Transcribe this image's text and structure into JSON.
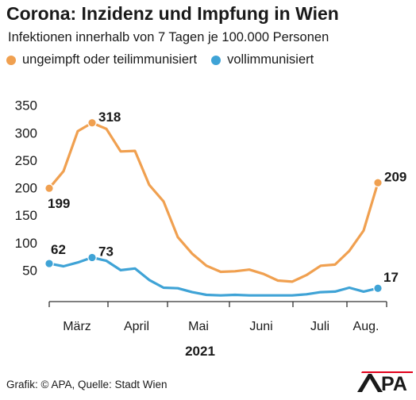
{
  "header": {
    "title": "Corona: Inzidenz und Impfung in Wien",
    "subtitle": "Infektionen innerhalb von 7 Tagen je 100.000 Personen"
  },
  "footer": {
    "credit": "Grafik: © APA, Quelle: Stadt Wien",
    "logo_text": "APA"
  },
  "colors": {
    "unvaccinated": "#f0a050",
    "vaccinated": "#3fa3d6"
  },
  "chart_data": {
    "type": "line",
    "title": "Corona: Inzidenz und Impfung in Wien",
    "subtitle": "Infektionen innerhalb von 7 Tagen je 100.000 Personen",
    "xlabel": "2021",
    "ylabel": "",
    "ylim": [
      0,
      350
    ],
    "yticks": [
      50,
      100,
      150,
      200,
      250,
      300,
      350
    ],
    "grid": false,
    "legend_position": "top-left",
    "x_ticks": [
      "März",
      "April",
      "Mai",
      "Juni",
      "Juli",
      "Aug."
    ],
    "x_unit": "weekly data points, Feb – Aug 2021",
    "series": [
      {
        "name": "ungeimpft oder teilimmunisiert",
        "color": "#f0a050",
        "values": [
          199,
          230,
          303,
          318,
          307,
          266,
          267,
          205,
          175,
          110,
          80,
          58,
          47,
          48,
          51,
          43,
          31,
          29,
          41,
          58,
          60,
          85,
          122,
          209
        ]
      },
      {
        "name": "vollimmunisiert",
        "color": "#3fa3d6",
        "values": [
          62,
          57,
          64,
          73,
          67,
          50,
          53,
          32,
          18,
          17,
          10,
          5,
          4,
          5,
          4,
          4,
          4,
          4,
          6,
          10,
          11,
          18,
          11,
          17
        ]
      }
    ],
    "annotations": [
      {
        "series": 0,
        "index": 0,
        "label": "199",
        "position": "below"
      },
      {
        "series": 0,
        "index": 3,
        "label": "318",
        "position": "right"
      },
      {
        "series": 0,
        "index": 23,
        "label": "209",
        "position": "right"
      },
      {
        "series": 1,
        "index": 0,
        "label": "62",
        "position": "above"
      },
      {
        "series": 1,
        "index": 3,
        "label": "73",
        "position": "right"
      },
      {
        "series": 1,
        "index": 23,
        "label": "17",
        "position": "above-right"
      }
    ]
  }
}
